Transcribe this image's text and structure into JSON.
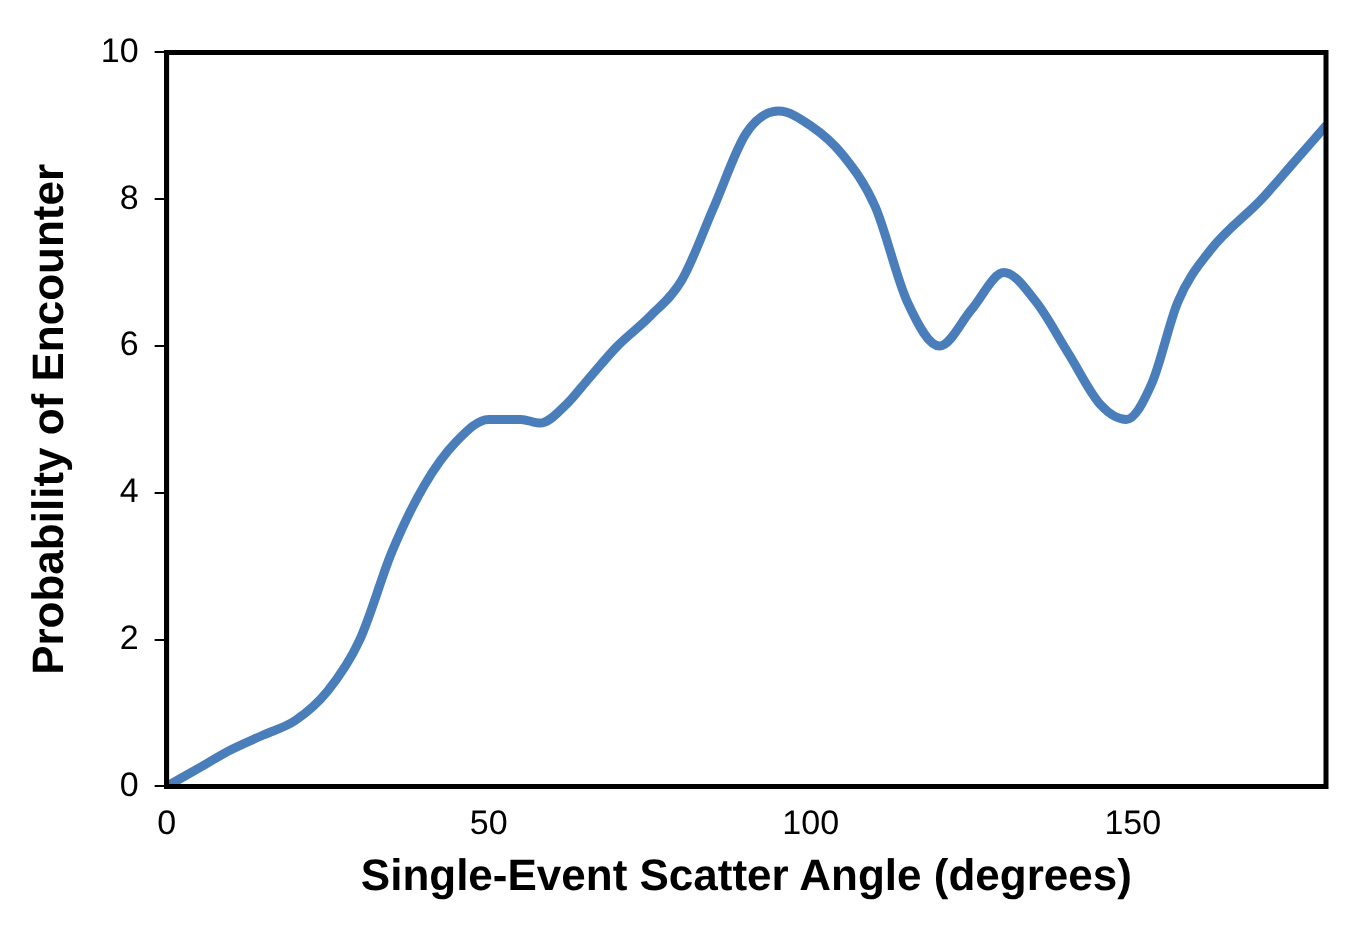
{
  "chart_data": {
    "type": "line",
    "xlabel": "Single-Event Scatter Angle (degrees)",
    "ylabel": "Probability of Encounter",
    "series": [
      {
        "color": "#4a7ebb",
        "x": [
          0,
          5,
          10,
          15,
          20,
          25,
          30,
          35,
          40,
          45,
          50,
          55,
          58,
          62,
          65,
          70,
          75,
          80,
          85,
          90,
          95,
          100,
          105,
          110,
          115,
          120,
          125,
          130,
          135,
          140,
          145,
          149,
          153,
          157,
          162,
          170,
          175,
          180
        ],
        "values": [
          0,
          0.25,
          0.5,
          0.7,
          0.9,
          1.3,
          2.0,
          3.2,
          4.1,
          4.7,
          5.0,
          5.0,
          4.95,
          5.2,
          5.5,
          6.0,
          6.4,
          6.9,
          7.9,
          8.9,
          9.2,
          9.0,
          8.6,
          7.9,
          6.6,
          6.0,
          6.5,
          7.0,
          6.6,
          5.9,
          5.2,
          5.0,
          5.5,
          6.6,
          7.3,
          8.0,
          8.5,
          9.0
        ]
      }
    ],
    "xlim": [
      0,
      180
    ],
    "xticks": [
      0,
      50,
      100,
      150
    ],
    "ylim": [
      0,
      10
    ],
    "yticks": [
      0,
      2,
      4,
      6,
      8,
      10
    ],
    "grid": false,
    "legend": false,
    "marker": "none",
    "line_style": "solid"
  }
}
